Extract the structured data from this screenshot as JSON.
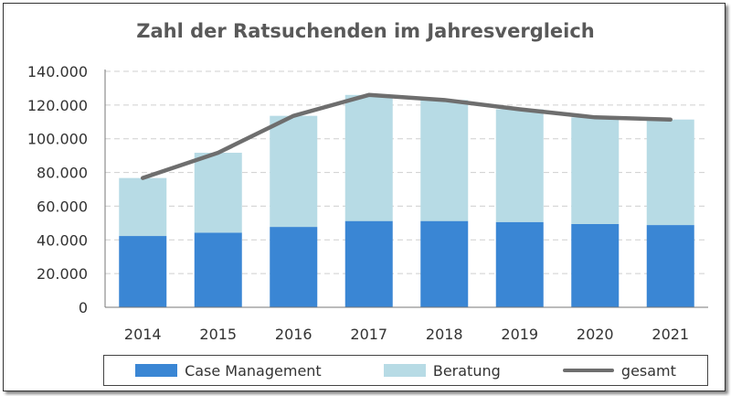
{
  "chart_data": {
    "type": "bar",
    "stacked": true,
    "title": "Zahl der Ratsuchenden im Jahresvergleich",
    "categories": [
      "2014",
      "2015",
      "2016",
      "2017",
      "2018",
      "2019",
      "2020",
      "2021"
    ],
    "series": [
      {
        "name": "Case Management",
        "type": "bar",
        "color": "#3a86d4",
        "values": [
          42300,
          44300,
          47700,
          51200,
          51200,
          50600,
          49400,
          48800
        ]
      },
      {
        "name": "Beratung",
        "type": "bar",
        "color": "#b7dbe5",
        "values": [
          34400,
          47400,
          65900,
          74800,
          71800,
          66900,
          63300,
          62600
        ]
      },
      {
        "name": "gesamt",
        "type": "line",
        "color": "#6e6e6e",
        "values": [
          76700,
          91700,
          113600,
          126000,
          123000,
          117500,
          112700,
          111400
        ]
      }
    ],
    "ylim": [
      0,
      140000
    ],
    "yticks": [
      "0",
      "20.000",
      "40.000",
      "60.000",
      "80.000",
      "100.000",
      "120.000",
      "140.000"
    ],
    "grid": true,
    "legend": "bottom"
  }
}
